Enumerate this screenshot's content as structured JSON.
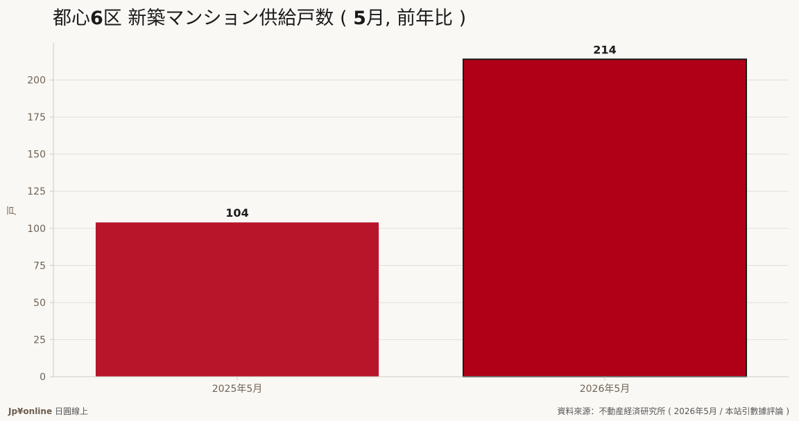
{
  "chart_data": {
    "type": "bar",
    "title": "都心6区 新築マンション供給戸数 ( 5月, 前年比 )",
    "title_parts": [
      "都心",
      "6",
      "区 新築マンション供給戸数 ( ",
      "5",
      "月, 前年比 )"
    ],
    "ylabel": "戸",
    "xlabel": "",
    "categories": [
      "2025年5月",
      "2026年5月"
    ],
    "values": [
      104,
      214
    ],
    "ylim": [
      0,
      225
    ],
    "yticks": [
      0,
      25,
      50,
      75,
      100,
      125,
      150,
      175,
      200
    ],
    "grid": true,
    "colors": [
      "#b8152b",
      "#b00018"
    ],
    "highlight_index": 1,
    "highlight_stroke": "#1b1b1b"
  },
  "footer": {
    "brand": "Jp¥online",
    "tagline": "日圓線上",
    "source": "資料來源：不動産経済研究所 ( 2026年5月 / 本站引數據評論 )"
  },
  "colors": {
    "background": "#faf8f4",
    "grid": "#e2ddd5",
    "axis": "#cfc9c0"
  }
}
